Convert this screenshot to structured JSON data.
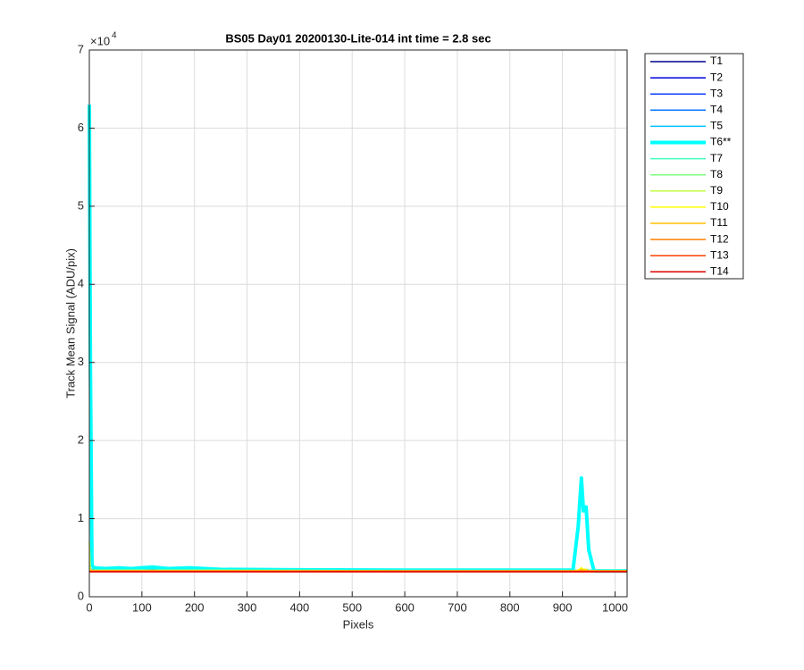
{
  "chart_data": {
    "type": "line",
    "title": "BS05 Day01 20200130-Lite-014 int time = 2.8 sec",
    "x_label": "Pixels",
    "y_label": "Track Mean Signal (ADU/pix)",
    "y_multiplier": {
      "base": "×10",
      "exponent": "4"
    },
    "xlim": [
      0,
      1023
    ],
    "xticks": [
      0,
      100,
      200,
      300,
      400,
      500,
      600,
      700,
      800,
      900,
      1000
    ],
    "ylim": [
      0,
      7
    ],
    "yticks": [
      0,
      1,
      2,
      3,
      4,
      5,
      6,
      7
    ],
    "grid": true,
    "legend_position": "outside-right",
    "x": [
      0,
      2,
      5,
      10,
      30,
      55,
      80,
      120,
      150,
      190,
      250,
      400,
      600,
      800,
      920,
      930,
      936,
      940,
      945,
      950,
      960,
      1023
    ],
    "series": [
      {
        "name": "T1",
        "color": "#00008f",
        "width": 1.5,
        "values": [
          0.33,
          0.33,
          0.33,
          0.33,
          0.33,
          0.33,
          0.33,
          0.33,
          0.33,
          0.33,
          0.33,
          0.33,
          0.33,
          0.33,
          0.33,
          0.33,
          0.33,
          0.33,
          0.33,
          0.33,
          0.33,
          0.33
        ]
      },
      {
        "name": "T2",
        "color": "#0000dd",
        "width": 1.5,
        "values": [
          0.33,
          0.33,
          0.33,
          0.33,
          0.33,
          0.33,
          0.33,
          0.33,
          0.33,
          0.33,
          0.33,
          0.33,
          0.33,
          0.33,
          0.33,
          0.33,
          0.33,
          0.33,
          0.33,
          0.33,
          0.33,
          0.33
        ]
      },
      {
        "name": "T3",
        "color": "#0a3cff",
        "width": 1.5,
        "values": [
          0.34,
          0.33,
          0.33,
          0.33,
          0.33,
          0.33,
          0.33,
          0.33,
          0.33,
          0.33,
          0.33,
          0.33,
          0.33,
          0.33,
          0.33,
          0.33,
          0.33,
          0.33,
          0.33,
          0.33,
          0.33,
          0.33
        ]
      },
      {
        "name": "T4",
        "color": "#0a78ff",
        "width": 1.5,
        "values": [
          0.35,
          0.34,
          0.34,
          0.34,
          0.34,
          0.34,
          0.34,
          0.34,
          0.34,
          0.34,
          0.34,
          0.33,
          0.33,
          0.33,
          0.33,
          0.33,
          0.34,
          0.33,
          0.33,
          0.33,
          0.33,
          0.33
        ]
      },
      {
        "name": "T5",
        "color": "#00c0ff",
        "width": 1.5,
        "values": [
          0.4,
          0.36,
          0.35,
          0.35,
          0.35,
          0.35,
          0.35,
          0.35,
          0.35,
          0.35,
          0.34,
          0.34,
          0.34,
          0.34,
          0.34,
          0.34,
          0.36,
          0.35,
          0.35,
          0.34,
          0.34,
          0.34
        ]
      },
      {
        "name": "T6**",
        "color": "#00ffff",
        "width": 4,
        "values": [
          6.3,
          3.0,
          0.4,
          0.37,
          0.36,
          0.37,
          0.36,
          0.38,
          0.36,
          0.37,
          0.35,
          0.345,
          0.34,
          0.34,
          0.34,
          0.9,
          1.52,
          1.1,
          1.15,
          0.6,
          0.33,
          0.33
        ]
      },
      {
        "name": "T7",
        "color": "#40ffc0",
        "width": 1.5,
        "values": [
          0.38,
          0.35,
          0.34,
          0.34,
          0.34,
          0.34,
          0.34,
          0.34,
          0.34,
          0.34,
          0.34,
          0.34,
          0.34,
          0.34,
          0.34,
          0.34,
          0.36,
          0.35,
          0.35,
          0.34,
          0.34,
          0.34
        ]
      },
      {
        "name": "T8",
        "color": "#80ff80",
        "width": 1.5,
        "values": [
          0.36,
          0.34,
          0.34,
          0.34,
          0.34,
          0.34,
          0.34,
          0.34,
          0.34,
          0.34,
          0.34,
          0.34,
          0.33,
          0.33,
          0.33,
          0.33,
          0.35,
          0.34,
          0.34,
          0.33,
          0.33,
          0.33
        ]
      },
      {
        "name": "T9",
        "color": "#c0ff40",
        "width": 1.5,
        "values": [
          0.7,
          0.35,
          0.34,
          0.34,
          0.34,
          0.34,
          0.34,
          0.34,
          0.34,
          0.34,
          0.34,
          0.33,
          0.33,
          0.33,
          0.33,
          0.34,
          0.37,
          0.35,
          0.35,
          0.33,
          0.33,
          0.33
        ]
      },
      {
        "name": "T10",
        "color": "#ffff00",
        "width": 1.5,
        "values": [
          0.35,
          0.34,
          0.33,
          0.33,
          0.33,
          0.33,
          0.33,
          0.33,
          0.33,
          0.33,
          0.33,
          0.33,
          0.33,
          0.33,
          0.33,
          0.34,
          0.37,
          0.35,
          0.35,
          0.33,
          0.33,
          0.33
        ]
      },
      {
        "name": "T11",
        "color": "#ffc000",
        "width": 1.5,
        "values": [
          0.34,
          0.33,
          0.33,
          0.33,
          0.33,
          0.33,
          0.33,
          0.33,
          0.33,
          0.33,
          0.33,
          0.33,
          0.33,
          0.33,
          0.33,
          0.33,
          0.35,
          0.34,
          0.34,
          0.33,
          0.33,
          0.33
        ]
      },
      {
        "name": "T12",
        "color": "#ff8000",
        "width": 1.5,
        "values": [
          0.33,
          0.33,
          0.33,
          0.33,
          0.33,
          0.33,
          0.33,
          0.33,
          0.33,
          0.33,
          0.33,
          0.33,
          0.33,
          0.33,
          0.33,
          0.33,
          0.33,
          0.33,
          0.33,
          0.33,
          0.33,
          0.33
        ]
      },
      {
        "name": "T13",
        "color": "#ff4000",
        "width": 1.5,
        "values": [
          0.32,
          0.32,
          0.32,
          0.32,
          0.32,
          0.32,
          0.32,
          0.32,
          0.32,
          0.32,
          0.32,
          0.32,
          0.32,
          0.32,
          0.32,
          0.32,
          0.32,
          0.32,
          0.32,
          0.32,
          0.32,
          0.32
        ]
      },
      {
        "name": "T14",
        "color": "#e00000",
        "width": 1.5,
        "values": [
          0.32,
          0.32,
          0.32,
          0.32,
          0.32,
          0.32,
          0.32,
          0.32,
          0.32,
          0.32,
          0.32,
          0.32,
          0.32,
          0.32,
          0.32,
          0.32,
          0.32,
          0.32,
          0.32,
          0.32,
          0.32,
          0.32
        ]
      }
    ]
  }
}
